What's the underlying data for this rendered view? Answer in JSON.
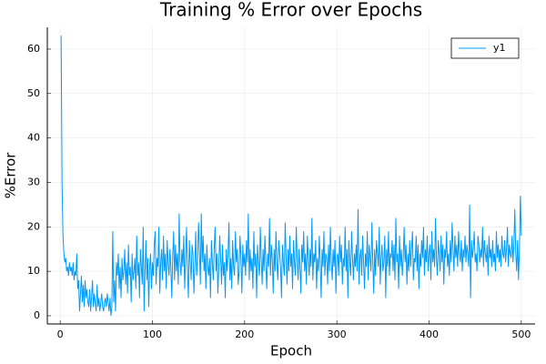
{
  "chart_data": {
    "type": "line",
    "title": "Training % Error over Epochs",
    "xlabel": "Epoch",
    "ylabel": "%Error",
    "x": [
      1,
      2,
      3,
      4,
      5,
      6,
      7,
      8,
      9,
      10,
      11,
      12,
      13,
      14,
      15,
      16,
      17,
      18,
      19,
      20,
      21,
      22,
      23,
      24,
      25,
      26,
      27,
      28,
      29,
      30,
      31,
      32,
      33,
      34,
      35,
      36,
      37,
      38,
      39,
      40,
      41,
      42,
      43,
      44,
      45,
      46,
      47,
      48,
      49,
      50,
      51,
      52,
      53,
      54,
      55,
      56,
      57,
      58,
      59,
      60,
      61,
      62,
      63,
      64,
      65,
      66,
      67,
      68,
      69,
      70,
      71,
      72,
      73,
      74,
      75,
      76,
      77,
      78,
      79,
      80,
      81,
      82,
      83,
      84,
      85,
      86,
      87,
      88,
      89,
      90,
      91,
      92,
      93,
      94,
      95,
      96,
      97,
      98,
      99,
      100,
      101,
      102,
      103,
      104,
      105,
      106,
      107,
      108,
      109,
      110,
      111,
      112,
      113,
      114,
      115,
      116,
      117,
      118,
      119,
      120,
      121,
      122,
      123,
      124,
      125,
      126,
      127,
      128,
      129,
      130,
      131,
      132,
      133,
      134,
      135,
      136,
      137,
      138,
      139,
      140,
      141,
      142,
      143,
      144,
      145,
      146,
      147,
      148,
      149,
      150,
      151,
      152,
      153,
      154,
      155,
      156,
      157,
      158,
      159,
      160,
      161,
      162,
      163,
      164,
      165,
      166,
      167,
      168,
      169,
      170,
      171,
      172,
      173,
      174,
      175,
      176,
      177,
      178,
      179,
      180,
      181,
      182,
      183,
      184,
      185,
      186,
      187,
      188,
      189,
      190,
      191,
      192,
      193,
      194,
      195,
      196,
      197,
      198,
      199,
      200,
      201,
      202,
      203,
      204,
      205,
      206,
      207,
      208,
      209,
      210,
      211,
      212,
      213,
      214,
      215,
      216,
      217,
      218,
      219,
      220,
      221,
      222,
      223,
      224,
      225,
      226,
      227,
      228,
      229,
      230,
      231,
      232,
      233,
      234,
      235,
      236,
      237,
      238,
      239,
      240,
      241,
      242,
      243,
      244,
      245,
      246,
      247,
      248,
      249,
      250,
      251,
      252,
      253,
      254,
      255,
      256,
      257,
      258,
      259,
      260,
      261,
      262,
      263,
      264,
      265,
      266,
      267,
      268,
      269,
      270,
      271,
      272,
      273,
      274,
      275,
      276,
      277,
      278,
      279,
      280,
      281,
      282,
      283,
      284,
      285,
      286,
      287,
      288,
      289,
      290,
      291,
      292,
      293,
      294,
      295,
      296,
      297,
      298,
      299,
      300,
      301,
      302,
      303,
      304,
      305,
      306,
      307,
      308,
      309,
      310,
      311,
      312,
      313,
      314,
      315,
      316,
      317,
      318,
      319,
      320,
      321,
      322,
      323,
      324,
      325,
      326,
      327,
      328,
      329,
      330,
      331,
      332,
      333,
      334,
      335,
      336,
      337,
      338,
      339,
      340,
      341,
      342,
      343,
      344,
      345,
      346,
      347,
      348,
      349,
      350,
      351,
      352,
      353,
      354,
      355,
      356,
      357,
      358,
      359,
      360,
      361,
      362,
      363,
      364,
      365,
      366,
      367,
      368,
      369,
      370,
      371,
      372,
      373,
      374,
      375,
      376,
      377,
      378,
      379,
      380,
      381,
      382,
      383,
      384,
      385,
      386,
      387,
      388,
      389,
      390,
      391,
      392,
      393,
      394,
      395,
      396,
      397,
      398,
      399,
      400,
      401,
      402,
      403,
      404,
      405,
      406,
      407,
      408,
      409,
      410,
      411,
      412,
      413,
      414,
      415,
      416,
      417,
      418,
      419,
      420,
      421,
      422,
      423,
      424,
      425,
      426,
      427,
      428,
      429,
      430,
      431,
      432,
      433,
      434,
      435,
      436,
      437,
      438,
      439,
      440,
      441,
      442,
      443,
      444,
      445,
      446,
      447,
      448,
      449,
      450,
      451,
      452,
      453,
      454,
      455,
      456,
      457,
      458,
      459,
      460,
      461,
      462,
      463,
      464,
      465,
      466,
      467,
      468,
      469,
      470,
      471,
      472,
      473,
      474,
      475,
      476,
      477,
      478,
      479,
      480,
      481,
      482,
      483,
      484,
      485,
      486,
      487,
      488,
      489,
      490,
      491,
      492,
      493,
      494,
      495,
      496,
      497,
      498,
      499,
      500
    ],
    "series": [
      {
        "name": "y1",
        "color": "#009af9",
        "values": [
          63,
          30,
          18,
          14,
          12,
          13,
          10,
          11,
          9,
          12,
          10,
          11,
          9,
          12,
          8,
          10,
          9,
          14,
          6,
          8,
          1,
          5,
          9,
          3,
          7,
          2,
          8,
          4,
          6,
          3,
          2,
          6,
          1,
          4,
          8,
          2,
          5,
          3,
          1,
          7,
          2,
          4,
          1,
          3,
          5,
          2,
          1,
          3,
          4,
          2,
          5,
          3,
          1,
          4,
          0,
          2,
          19,
          3,
          8,
          1,
          12,
          9,
          14,
          6,
          11,
          4,
          13,
          8,
          10,
          15,
          7,
          12,
          5,
          16,
          9,
          11,
          3,
          14,
          8,
          10,
          13,
          6,
          18,
          9,
          12,
          4,
          15,
          11,
          7,
          20,
          1,
          10,
          17,
          8,
          13,
          2,
          11,
          14,
          6,
          12,
          9,
          16,
          19,
          7,
          13,
          11,
          20,
          5,
          12,
          15,
          8,
          18,
          10,
          14,
          6,
          17,
          12,
          9,
          15,
          11,
          4,
          13,
          19,
          8,
          16,
          10,
          14,
          7,
          23,
          12,
          9,
          15,
          11,
          18,
          6,
          13,
          20,
          10,
          4,
          17,
          12,
          8,
          16,
          14,
          5,
          11,
          19,
          9,
          13,
          21,
          15,
          7,
          23,
          12,
          18,
          10,
          14,
          6,
          16,
          11,
          9,
          13,
          4,
          17,
          12,
          8,
          15,
          20,
          10,
          14,
          5,
          11,
          18,
          13,
          7,
          16,
          9,
          12,
          4,
          15,
          10,
          14,
          21,
          8,
          13,
          6,
          17,
          11,
          9,
          19,
          12,
          15,
          7,
          10,
          18,
          13,
          5,
          16,
          11,
          14,
          9,
          17,
          12,
          23,
          8,
          15,
          10,
          13,
          6,
          19,
          11,
          14,
          4,
          16,
          12,
          9,
          20,
          13,
          7,
          15,
          10,
          18,
          12,
          6,
          14,
          11,
          22,
          9,
          16,
          13,
          5,
          15,
          10,
          19,
          12,
          8,
          17,
          14,
          11,
          4,
          16,
          12,
          9,
          21,
          13,
          7,
          15,
          10,
          18,
          11,
          14,
          6,
          17,
          12,
          9,
          20,
          13,
          8,
          15,
          11,
          5,
          16,
          12,
          19,
          10,
          14,
          7,
          18,
          13,
          9,
          15,
          11,
          22,
          8,
          14,
          12,
          17,
          6,
          13,
          10,
          18,
          12,
          4,
          15,
          11,
          19,
          9,
          14,
          13,
          7,
          16,
          10,
          20,
          12,
          8,
          15,
          11,
          17,
          5,
          13,
          14,
          9,
          18,
          12,
          16,
          7,
          13,
          11,
          20,
          10,
          15,
          4,
          17,
          12,
          9,
          19,
          13,
          8,
          14,
          11,
          16,
          10,
          24,
          7,
          13,
          15,
          9,
          18,
          12,
          6,
          14,
          11,
          19,
          8,
          16,
          13,
          10,
          21,
          12,
          5,
          15,
          9,
          17,
          14,
          11,
          20,
          7,
          13,
          16,
          10,
          12,
          18,
          4,
          15,
          11,
          19,
          9,
          14,
          13,
          17,
          10,
          16,
          8,
          22,
          12,
          14,
          6,
          18,
          11,
          15,
          9,
          13,
          20,
          12,
          16,
          7,
          14,
          10,
          17,
          11,
          15,
          19,
          8,
          13,
          12,
          18,
          10,
          16,
          6,
          14,
          11,
          17,
          13,
          20,
          9,
          15,
          12,
          18,
          10,
          14,
          16,
          8,
          19,
          12,
          15,
          11,
          22,
          13,
          9,
          17,
          14,
          10,
          18,
          12,
          16,
          7,
          15,
          13,
          19,
          11,
          14,
          9,
          17,
          12,
          21,
          15,
          10,
          18,
          13,
          16,
          11,
          19,
          14,
          12,
          17,
          10,
          15,
          13,
          18,
          12,
          16,
          14,
          11,
          25,
          4,
          17,
          13,
          15,
          19,
          12,
          14,
          10,
          18,
          16,
          12,
          15,
          13,
          20,
          11,
          17,
          14,
          12,
          16,
          9,
          18,
          13,
          15,
          11,
          17,
          12,
          14,
          10,
          19,
          13,
          16,
          12,
          15,
          11,
          18,
          14,
          13,
          17,
          12,
          15,
          20,
          11,
          16,
          14,
          13,
          18,
          12,
          16,
          24,
          14,
          10,
          17,
          8,
          15,
          27,
          18
        ]
      }
    ],
    "xlim": [
      -13.97,
      514.97
    ],
    "xticks": [
      0,
      100,
      200,
      300,
      400,
      500
    ],
    "ylim": [
      -1.85,
      64.9
    ],
    "yticks": [
      0,
      10,
      20,
      30,
      40,
      50,
      60
    ],
    "grid": true,
    "legend": "top-right"
  }
}
